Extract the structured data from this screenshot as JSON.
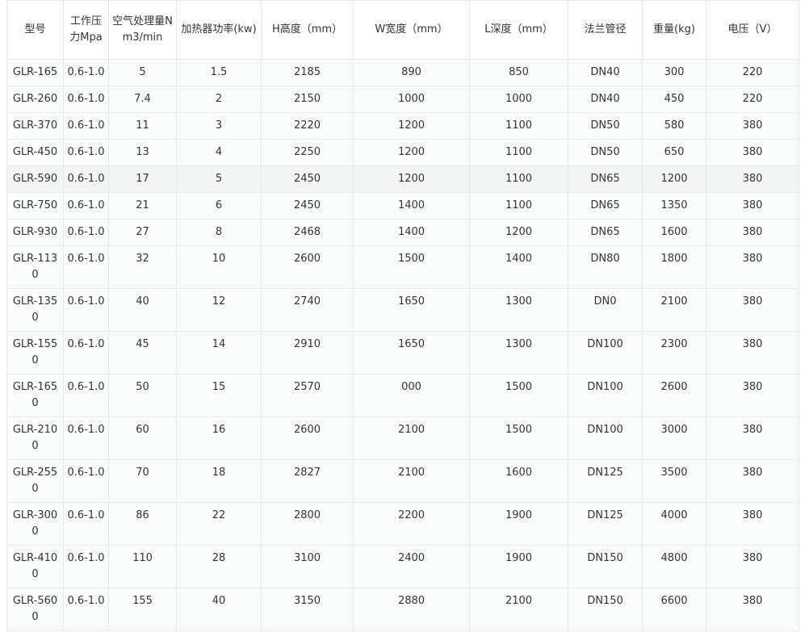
{
  "table": {
    "headers": [
      "型号",
      "工作压力Mpa",
      "空气处理量Nm3/min",
      "加热器功率(kw)",
      "H高度（mm）",
      "W宽度（mm）",
      "L深度（mm）",
      "法兰管径",
      "重量(kg)",
      "电压（V）"
    ],
    "highlighted_row": 4,
    "rows": [
      [
        "GLR-165",
        "0.6-1.0",
        "5",
        "1.5",
        "2185",
        "890",
        "850",
        "DN40",
        "300",
        "220"
      ],
      [
        "GLR-260",
        "0.6-1.0",
        "7.4",
        "2",
        "2150",
        "1000",
        "1000",
        "DN40",
        "450",
        "220"
      ],
      [
        "GLR-370",
        "0.6-1.0",
        "11",
        "3",
        "2220",
        "1200",
        "1100",
        "DN50",
        "580",
        "380"
      ],
      [
        "GLR-450",
        "0.6-1.0",
        "13",
        "4",
        "2250",
        "1200",
        "1100",
        "DN50",
        "650",
        "380"
      ],
      [
        "GLR-590",
        "0.6-1.0",
        "17",
        "5",
        "2450",
        "1200",
        "1100",
        "DN65",
        "1200",
        "380"
      ],
      [
        "GLR-750",
        "0.6-1.0",
        "21",
        "6",
        "2450",
        "1400",
        "1100",
        "DN65",
        "1350",
        "380"
      ],
      [
        "GLR-930",
        "0.6-1.0",
        "27",
        "8",
        "2468",
        "1400",
        "1200",
        "DN65",
        "1600",
        "380"
      ],
      [
        "GLR-1130",
        "0.6-1.0",
        "32",
        "10",
        "2600",
        "1500",
        "1400",
        "DN80",
        "1800",
        "380"
      ],
      [
        "GLR-1350",
        "0.6-1.0",
        "40",
        "12",
        "2740",
        "1650",
        "1300",
        "DN0",
        "2100",
        "380"
      ],
      [
        "GLR-1550",
        "0.6-1.0",
        "45",
        "14",
        "2910",
        "1650",
        "1300",
        "DN100",
        "2300",
        "380"
      ],
      [
        "GLR-1650",
        "0.6-1.0",
        "50",
        "15",
        "2570",
        "000",
        "1500",
        "DN100",
        "2600",
        "380"
      ],
      [
        "GLR-2100",
        "0.6-1.0",
        "60",
        "16",
        "2600",
        "2100",
        "1500",
        "DN100",
        "3000",
        "380"
      ],
      [
        "GLR-2550",
        "0.6-1.0",
        "70",
        "18",
        "2827",
        "2100",
        "1600",
        "DN125",
        "3500",
        "380"
      ],
      [
        "GLR-3000",
        "0.6-1.0",
        "86",
        "22",
        "2800",
        "2200",
        "1900",
        "DN125",
        "4000",
        "380"
      ],
      [
        "GLR-4100",
        "0.6-1.0",
        "110",
        "28",
        "3100",
        "2400",
        "1900",
        "DN150",
        "4800",
        "380"
      ],
      [
        "GLR-5600",
        "0.6-1.0",
        "155",
        "40",
        "3150",
        "2880",
        "2100",
        "DN150",
        "6600",
        "380"
      ]
    ]
  }
}
